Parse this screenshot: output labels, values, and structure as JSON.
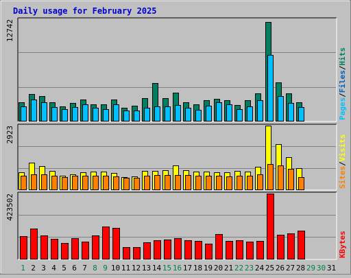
{
  "chart_data": {
    "type": "bar",
    "title": "Daily usage for February 2025",
    "categories": [
      "1",
      "2",
      "3",
      "4",
      "5",
      "6",
      "7",
      "8",
      "9",
      "10",
      "11",
      "12",
      "13",
      "14",
      "15",
      "16",
      "17",
      "18",
      "19",
      "20",
      "21",
      "22",
      "23",
      "24",
      "25",
      "26",
      "27",
      "28",
      "29",
      "30",
      "31"
    ],
    "weekend_days": [
      1,
      8,
      9,
      15,
      16,
      22,
      23,
      29,
      30
    ],
    "colors": {
      "title": "#0000cc",
      "hits": "#008060",
      "files": "#0060c0",
      "pages": "#00c0ff",
      "visits": "#ffff00",
      "sites": "#ff8000",
      "kbytes": "#ff0000",
      "weekend_label": "#008040",
      "weekday_label": "#000000"
    },
    "panels": [
      {
        "id": "hits",
        "max_label": "12742",
        "ymax": 12742,
        "legend": [
          {
            "text": "Pages",
            "color": "#00c0ff"
          },
          {
            "text": "/",
            "color": "#000000"
          },
          {
            "text": "Files",
            "color": "#0060c0"
          },
          {
            "text": "/",
            "color": "#000000"
          },
          {
            "text": "Hits",
            "color": "#008060"
          }
        ],
        "series": [
          {
            "name": "Hits",
            "color": "#008060",
            "values": [
              2350,
              3350,
              3100,
              2300,
              1850,
              2250,
              2700,
              2100,
              2100,
              2700,
              1650,
              1900,
              2800,
              4750,
              2850,
              3550,
              2300,
              2100,
              2600,
              2750,
              2550,
              2000,
              2550,
              3450,
              12400,
              4850,
              3450,
              2350,
              null,
              null,
              null
            ]
          },
          {
            "name": "Pages",
            "color": "#00c0ff",
            "values": [
              1800,
              2700,
              2300,
              1700,
              1450,
              1700,
              2100,
              1650,
              1500,
              2100,
              1250,
              1300,
              1600,
              1850,
              1800,
              1950,
              1650,
              1400,
              1900,
              2300,
              2050,
              1500,
              1800,
              2600,
              8300,
              3100,
              2250,
              1700,
              null,
              null,
              null
            ]
          }
        ]
      },
      {
        "id": "visits",
        "max_label": "2923",
        "ymax": 2923,
        "legend": [
          {
            "text": "Sites",
            "color": "#ff8000"
          },
          {
            "text": "/",
            "color": "#000000"
          },
          {
            "text": "Visits",
            "color": "#ffff00"
          }
        ],
        "series": [
          {
            "name": "Visits",
            "color": "#ffff00",
            "values": [
              780,
              1240,
              1060,
              840,
              630,
              700,
              780,
              820,
              810,
              760,
              580,
              610,
              840,
              860,
              880,
              1110,
              880,
              830,
              830,
              800,
              780,
              850,
              830,
              1040,
              2923,
              2070,
              1480,
              990,
              null,
              null,
              null
            ]
          },
          {
            "name": "Sites",
            "color": "#ff8000",
            "values": [
              620,
              690,
              690,
              640,
              580,
              620,
              620,
              630,
              630,
              600,
              530,
              550,
              640,
              650,
              670,
              650,
              650,
              630,
              630,
              630,
              610,
              620,
              620,
              700,
              1150,
              1110,
              940,
              570,
              null,
              null,
              null
            ]
          }
        ]
      },
      {
        "id": "kbytes",
        "max_label": "423502",
        "ymax": 423502,
        "legend": [
          {
            "text": "KBytes",
            "color": "#ff0000"
          }
        ],
        "series": [
          {
            "name": "KBytes",
            "color": "#ff0000",
            "values": [
              147000,
              195000,
              151000,
              131000,
              104000,
              132000,
              111000,
              151000,
              210000,
              202000,
              78000,
              78000,
              107000,
              121000,
              126000,
              135000,
              122000,
              114000,
              99000,
              159000,
              116000,
              119000,
              111000,
              117000,
              423502,
              157000,
              165000,
              183000,
              null,
              null,
              null
            ]
          }
        ]
      }
    ]
  }
}
